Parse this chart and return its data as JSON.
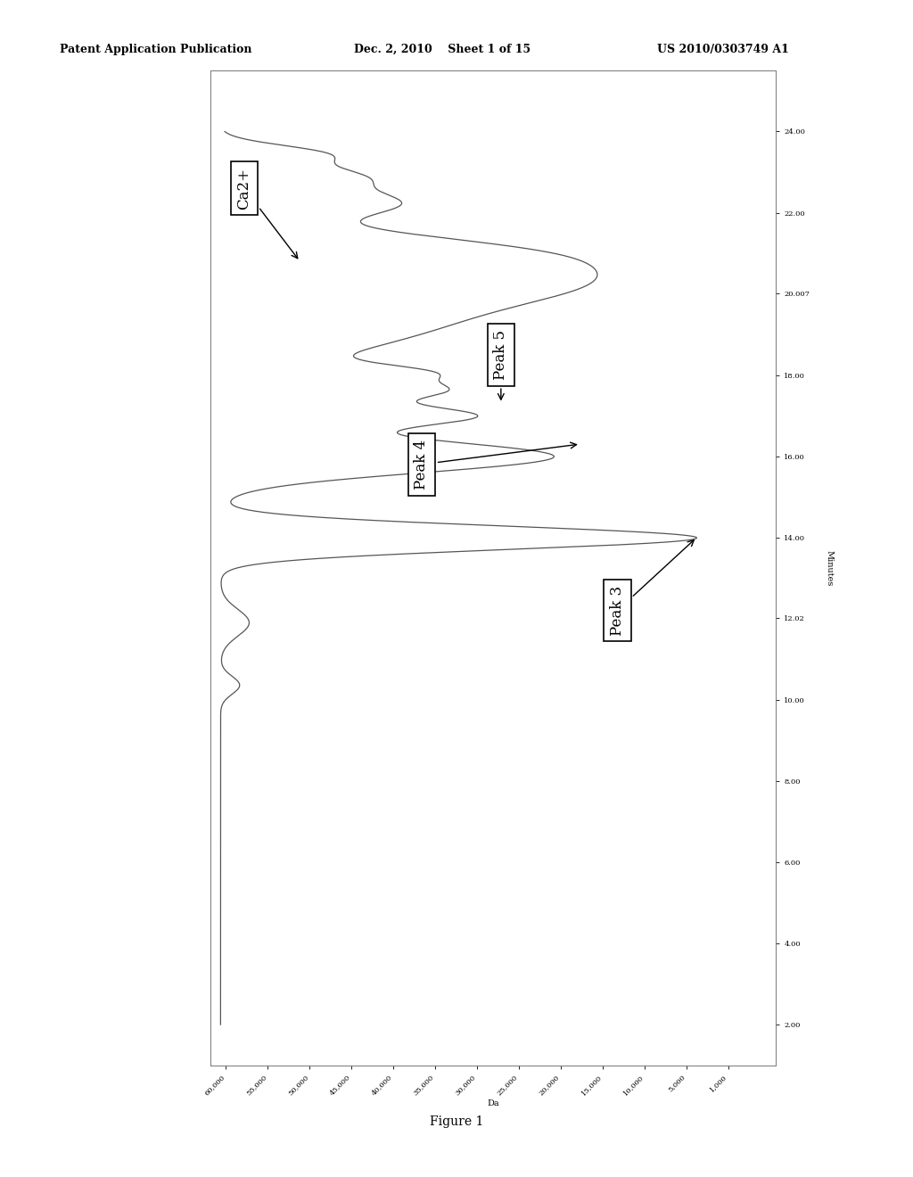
{
  "title_left": "Patent Application Publication",
  "title_mid": "Dec. 2, 2010    Sheet 1 of 15",
  "title_right": "US 2010/0303749 A1",
  "figure_label": "Figure 1",
  "background_color": "#ffffff",
  "plot_bg_color": "#ffffff",
  "line_color": "#555555",
  "border_color": "#999999",
  "x_tick_labels": [
    "60,000",
    "55,000",
    "50,000",
    "45,000",
    "40,000",
    "35,000",
    "30,000",
    "25,000",
    "20,000",
    "15,000",
    "10,000",
    "5,000",
    "1,000"
  ],
  "y_tick_labels": [
    "2.00",
    "4.00",
    "6.00",
    "8.00",
    "10.00",
    "12.02",
    "14.00",
    "16.00",
    "18.00",
    "20.007",
    "22.00",
    "24.00"
  ],
  "y_tick_values": [
    2.0,
    4.0,
    6.0,
    8.0,
    10.0,
    12.02,
    14.0,
    16.0,
    18.0,
    20.007,
    22.0,
    24.0
  ],
  "annot_fontsize": 12,
  "header_fontsize": 9
}
